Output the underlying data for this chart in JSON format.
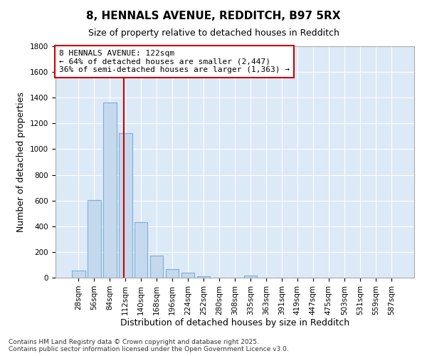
{
  "title_line1": "8, HENNALS AVENUE, REDDITCH, B97 5RX",
  "title_line2": "Size of property relative to detached houses in Redditch",
  "xlabel": "Distribution of detached houses by size in Redditch",
  "ylabel": "Number of detached properties",
  "bar_color": "#c5d9ee",
  "bar_edge_color": "#7bafd4",
  "plot_bg_color": "#dce9f7",
  "fig_bg_color": "#ffffff",
  "grid_color": "#ffffff",
  "categories": [
    "28sqm",
    "56sqm",
    "84sqm",
    "112sqm",
    "140sqm",
    "168sqm",
    "196sqm",
    "224sqm",
    "252sqm",
    "280sqm",
    "308sqm",
    "335sqm",
    "363sqm",
    "391sqm",
    "419sqm",
    "447sqm",
    "475sqm",
    "503sqm",
    "531sqm",
    "559sqm",
    "587sqm"
  ],
  "values": [
    55,
    605,
    1365,
    1125,
    430,
    170,
    65,
    38,
    10,
    0,
    0,
    18,
    0,
    0,
    0,
    0,
    0,
    0,
    0,
    0,
    0
  ],
  "ylim": [
    0,
    1800
  ],
  "yticks": [
    0,
    200,
    400,
    600,
    800,
    1000,
    1200,
    1400,
    1600,
    1800
  ],
  "property_sqm": 122,
  "annotation_line1": "8 HENNALS AVENUE: 122sqm",
  "annotation_line2": "← 64% of detached houses are smaller (2,447)",
  "annotation_line3": "36% of semi-detached houses are larger (1,363) →",
  "annotation_box_color": "#ffffff",
  "annotation_border_color": "#cc0000",
  "vline_color": "#cc0000",
  "footer_line1": "Contains HM Land Registry data © Crown copyright and database right 2025.",
  "footer_line2": "Contains public sector information licensed under the Open Government Licence v3.0.",
  "title1_fontsize": 11,
  "title2_fontsize": 9,
  "axis_label_fontsize": 9,
  "tick_fontsize": 7.5,
  "footer_fontsize": 6.5,
  "annotation_fontsize": 8
}
